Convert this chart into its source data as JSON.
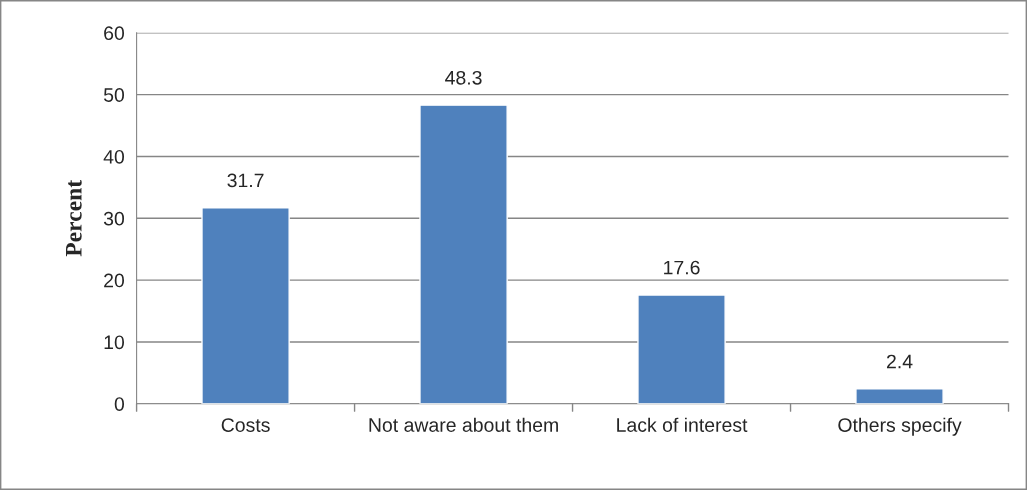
{
  "chart_data": {
    "type": "bar",
    "ylabel": "Percent",
    "categories": [
      "Costs",
      "Not aware about them",
      "Lack of interest",
      "Others specify"
    ],
    "values": [
      31.7,
      48.3,
      17.6,
      2.4
    ],
    "color": "#4f81bd",
    "ylim": [
      0,
      60
    ],
    "yticks": [
      0,
      10,
      20,
      30,
      40,
      50,
      60
    ],
    "grid": "y",
    "data_labels": true,
    "legend": false
  }
}
